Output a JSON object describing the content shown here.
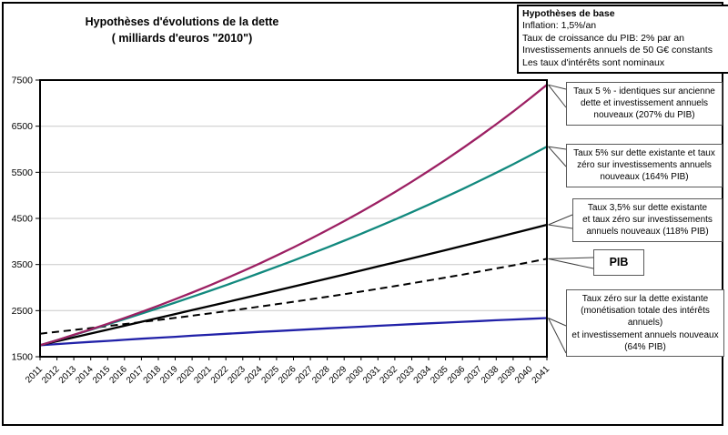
{
  "title": {
    "line1": "Hypothèses d'évolutions de la dette",
    "line2": "( milliards d'euros \"2010\")"
  },
  "assumptions": {
    "heading": "Hypothèses de base",
    "lines": [
      "Inflation: 1,5%/an",
      "Taux de croissance du PIB: 2% par an",
      "Investissements annuels de 50 G€ constants",
      "Les taux d'intérêts sont nominaux"
    ]
  },
  "annotations": [
    {
      "text": "Taux 5 % -  identiques sur ancienne\ndette et investissement annuels\nnouveaux (207% du PIB)"
    },
    {
      "text": "Taux 5% sur dette existante et taux\nzéro sur investissements annuels\nnouveaux (164% PIB)"
    },
    {
      "text": "Taux 3,5% sur dette existante\net taux zéro sur investissements\nannuels nouveaux (118% PIB)"
    },
    {
      "text": "PIB"
    },
    {
      "text": "Taux zéro sur la dette existante\n(monétisation totale des intérêts\nannuels)\net investissement annuels nouveaux\n(64% PIB)"
    }
  ],
  "chart_data": {
    "type": "line",
    "title": "Hypothèses d'évolutions de la dette ( milliards d'euros \"2010\")",
    "xlabel": "",
    "ylabel": "",
    "ylim": [
      1500,
      7500
    ],
    "ytick_step": 1000,
    "grid": true,
    "legend_position": "right-callouts",
    "x": [
      2011,
      2012,
      2013,
      2014,
      2015,
      2016,
      2017,
      2018,
      2019,
      2020,
      2021,
      2022,
      2023,
      2024,
      2025,
      2026,
      2027,
      2028,
      2029,
      2030,
      2031,
      2032,
      2033,
      2034,
      2035,
      2036,
      2037,
      2038,
      2039,
      2040,
      2041
    ],
    "series": [
      {
        "name": "Taux 5% identiques sur ancienne dette et investissement annuels nouveaux (207% du PIB)",
        "color": "#9c2063",
        "style": "solid",
        "values": [
          1750,
          1860,
          1975,
          2093,
          2215,
          2341,
          2472,
          2607,
          2747,
          2892,
          3041,
          3196,
          3357,
          3522,
          3694,
          3871,
          4055,
          4245,
          4441,
          4644,
          4854,
          5071,
          5296,
          5529,
          5770,
          6019,
          6276,
          6543,
          6818,
          7103,
          7398
        ]
      },
      {
        "name": "Taux 5% sur dette existante et taux zéro sur investissements annuels nouveaux (164% PIB)",
        "color": "#12897e",
        "style": "solid",
        "values": [
          1750,
          1860,
          1972,
          2085,
          2200,
          2316,
          2434,
          2554,
          2675,
          2799,
          2924,
          3052,
          3182,
          3315,
          3450,
          3587,
          3728,
          3871,
          4017,
          4166,
          4319,
          4475,
          4634,
          4798,
          4965,
          5136,
          5311,
          5491,
          5675,
          5864,
          6058
        ]
      },
      {
        "name": "Taux 3,5% sur dette existante et taux zéro sur investissements annuels nouveaux (118% PIB)",
        "color": "#000000",
        "style": "solid",
        "values": [
          1750,
          1835,
          1919,
          2003,
          2088,
          2172,
          2257,
          2341,
          2426,
          2510,
          2595,
          2680,
          2765,
          2851,
          2936,
          3022,
          3109,
          3195,
          3282,
          3369,
          3457,
          3545,
          3633,
          3722,
          3812,
          3902,
          3993,
          4084,
          4176,
          4268,
          4361
        ]
      },
      {
        "name": "PIB",
        "color": "#000000",
        "style": "dashed",
        "values": [
          2000,
          2040,
          2081,
          2122,
          2165,
          2208,
          2252,
          2297,
          2343,
          2390,
          2438,
          2487,
          2536,
          2587,
          2639,
          2692,
          2746,
          2801,
          2856,
          2914,
          2972,
          3031,
          3092,
          3154,
          3217,
          3281,
          3347,
          3414,
          3482,
          3552,
          3623
        ]
      },
      {
        "name": "Taux zéro sur la dette existante (monétisation totale des intérêts annuels) et investissement annuels nouveaux (64% PIB)",
        "color": "#2121a8",
        "style": "solid",
        "values": [
          1750,
          1774,
          1798,
          1821,
          1844,
          1867,
          1890,
          1912,
          1933,
          1955,
          1976,
          1997,
          2017,
          2038,
          2057,
          2077,
          2096,
          2115,
          2134,
          2152,
          2171,
          2189,
          2206,
          2224,
          2241,
          2258,
          2274,
          2291,
          2307,
          2323,
          2338
        ]
      }
    ]
  }
}
